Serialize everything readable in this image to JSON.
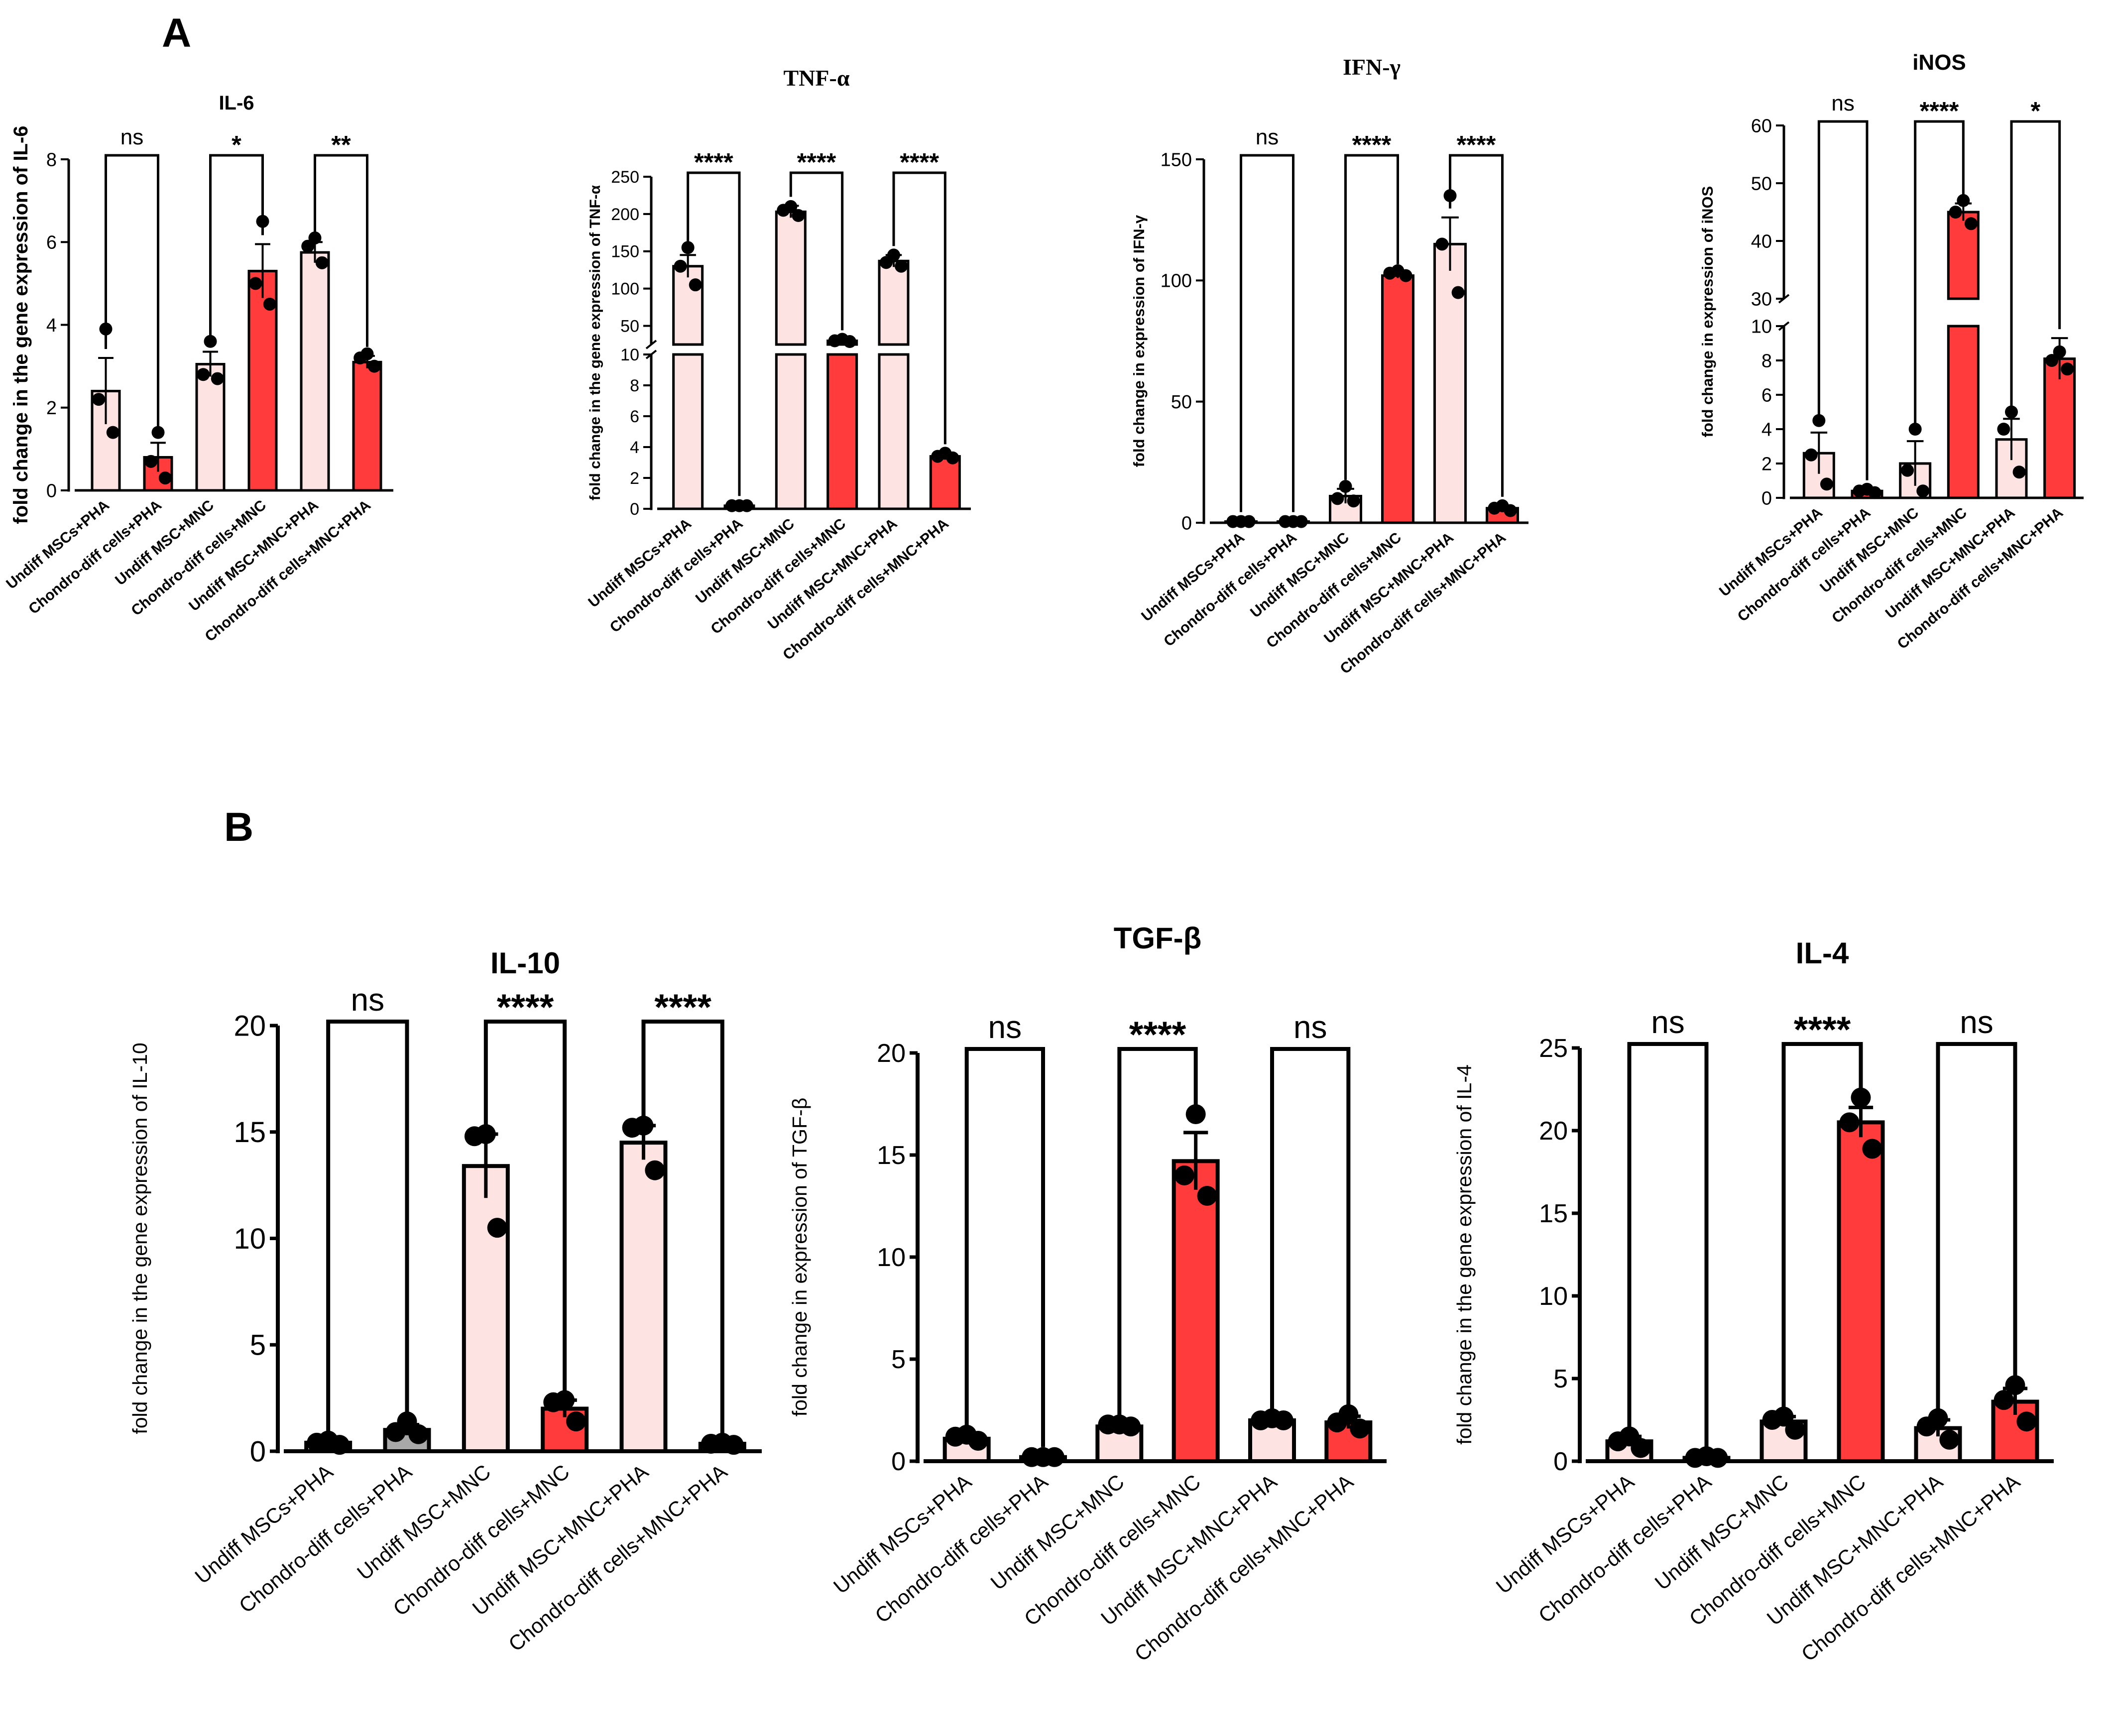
{
  "panel_labels": {
    "a": "A",
    "b": "B"
  },
  "colors": {
    "undiff": "#fde4e3",
    "chondro": "#ff3b3b",
    "gray": "#a8a8a8",
    "ink": "#000000"
  },
  "chart_data": [
    {
      "id": "il6",
      "type": "bar",
      "title": "IL-6",
      "ylabel": "fold change in the gene expression of IL-6",
      "categories": [
        "Undiff MSCs+PHA",
        "Chondro-diff cells+PHA",
        "Undiff MSC+MNC",
        "Chondro-diff cells+MNC",
        "Undiff MSC+MNC+PHA",
        "Chondro-diff cells+MNC+PHA"
      ],
      "values": [
        2.4,
        0.8,
        3.05,
        5.3,
        5.75,
        3.1
      ],
      "errors": [
        0.8,
        0.35,
        0.3,
        0.65,
        0.25,
        0.15
      ],
      "points": [
        [
          3.9,
          2.2,
          1.4
        ],
        [
          1.4,
          0.7,
          0.3
        ],
        [
          3.6,
          2.8,
          2.7
        ],
        [
          6.5,
          5.0,
          4.5
        ],
        [
          6.1,
          5.9,
          5.5
        ],
        [
          3.3,
          3.2,
          3.0
        ]
      ],
      "ylim": [
        0,
        8
      ],
      "yticks": [
        0,
        2,
        4,
        6,
        8
      ],
      "comparisons": [
        {
          "bars": [
            0,
            1
          ],
          "label": "ns"
        },
        {
          "bars": [
            2,
            3
          ],
          "label": "*"
        },
        {
          "bars": [
            4,
            5
          ],
          "label": "**"
        }
      ]
    },
    {
      "id": "tnfa",
      "type": "bar",
      "title": "TNF-α",
      "ylabel": "fold change in the gene expression of TNF-α",
      "categories": [
        "Undiff MSCs+PHA",
        "Chondro-diff cells+PHA",
        "Undiff MSC+MNC",
        "Chondro-diff cells+MNC",
        "Undiff MSC+MNC+PHA",
        "Chondro-diff cells+MNC+PHA"
      ],
      "values": [
        130,
        0.2,
        203,
        30,
        137,
        3.4
      ],
      "errors": [
        15,
        0.05,
        8,
        2,
        8,
        0.2
      ],
      "points": [
        [
          155,
          130,
          105
        ],
        [
          0.2,
          0.2,
          0.2
        ],
        [
          210,
          205,
          198
        ],
        [
          32,
          30,
          29
        ],
        [
          145,
          135,
          130
        ],
        [
          3.6,
          3.4,
          3.3
        ]
      ],
      "ylim_lower": [
        0,
        10
      ],
      "ylim_upper": [
        25,
        250
      ],
      "yticks_lower": [
        0,
        2,
        4,
        6,
        8,
        10
      ],
      "yticks_upper": [
        50,
        100,
        150,
        200,
        250
      ],
      "comparisons": [
        {
          "bars": [
            0,
            1
          ],
          "label": "****"
        },
        {
          "bars": [
            2,
            3
          ],
          "label": "****"
        },
        {
          "bars": [
            4,
            5
          ],
          "label": "****"
        }
      ]
    },
    {
      "id": "ifng",
      "type": "bar",
      "title": "IFN-γ",
      "ylabel": "fold change in expression of IFN-γ",
      "categories": [
        "Undiff MSCs+PHA",
        "Chondro-diff cells+PHA",
        "Undiff MSC+MNC",
        "Chondro-diff cells+MNC",
        "Undiff MSC+MNC+PHA",
        "Chondro-diff cells+MNC+PHA"
      ],
      "values": [
        0.5,
        0.5,
        11,
        102,
        115,
        6
      ],
      "errors": [
        0.2,
        0.2,
        3,
        1,
        11,
        1
      ],
      "points": [
        [
          0.5,
          0.5,
          0.5
        ],
        [
          0.5,
          0.5,
          0.5
        ],
        [
          15,
          10,
          9
        ],
        [
          104,
          103,
          102
        ],
        [
          135,
          115,
          95
        ],
        [
          7,
          6,
          5
        ]
      ],
      "ylim": [
        0,
        150
      ],
      "yticks": [
        0,
        50,
        100,
        150
      ],
      "comparisons": [
        {
          "bars": [
            0,
            1
          ],
          "label": "ns"
        },
        {
          "bars": [
            2,
            3
          ],
          "label": "****"
        },
        {
          "bars": [
            4,
            5
          ],
          "label": "****"
        }
      ]
    },
    {
      "id": "inos",
      "type": "bar",
      "title": "iNOS",
      "ylabel": "fold change in expression of iNOS",
      "categories": [
        "Undiff MSCs+PHA",
        "Chondro-diff cells+PHA",
        "Undiff MSC+MNC",
        "Chondro-diff cells+MNC",
        "Undiff MSC+MNC+PHA",
        "Chondro-diff cells+MNC+PHA"
      ],
      "values": [
        2.6,
        0.4,
        2.0,
        45,
        3.4,
        8.1
      ],
      "errors": [
        1.2,
        0.1,
        1.3,
        1.5,
        1.2,
        1.2
      ],
      "points": [
        [
          4.5,
          2.5,
          0.8
        ],
        [
          0.5,
          0.4,
          0.3
        ],
        [
          4.0,
          1.6,
          0.4
        ],
        [
          47,
          45,
          43
        ],
        [
          5.0,
          4.0,
          1.5
        ],
        [
          8.5,
          8.0,
          7.5
        ]
      ],
      "ylim_lower": [
        0,
        10
      ],
      "ylim_upper": [
        30,
        60
      ],
      "yticks_lower": [
        0,
        2,
        4,
        6,
        8,
        10
      ],
      "yticks_upper": [
        30,
        40,
        50,
        60
      ],
      "comparisons": [
        {
          "bars": [
            0,
            1
          ],
          "label": "ns"
        },
        {
          "bars": [
            2,
            3
          ],
          "label": "****"
        },
        {
          "bars": [
            4,
            5
          ],
          "label": "*"
        }
      ]
    },
    {
      "id": "il10",
      "type": "bar",
      "title": "IL-10",
      "ylabel": "fold change in the gene expression of IL-10",
      "categories": [
        "Undiff MSCs+PHA",
        "Chondro-diff cells+PHA",
        "Undiff MSC+MNC",
        "Chondro-diff cells+MNC",
        "Undiff MSC+MNC+PHA",
        "Chondro-diff cells+MNC+PHA"
      ],
      "values": [
        0.4,
        1.0,
        13.4,
        2.0,
        14.5,
        0.35
      ],
      "errors": [
        0.1,
        0.25,
        1.5,
        0.4,
        0.8,
        0.05
      ],
      "points": [
        [
          0.5,
          0.4,
          0.3
        ],
        [
          1.4,
          0.9,
          0.8
        ],
        [
          14.9,
          14.8,
          10.5
        ],
        [
          2.4,
          2.3,
          1.4
        ],
        [
          15.3,
          15.2,
          13.2
        ],
        [
          0.4,
          0.35,
          0.3
        ]
      ],
      "ylim": [
        0,
        20
      ],
      "yticks": [
        0,
        5,
        10,
        15,
        20
      ],
      "comparisons": [
        {
          "bars": [
            0,
            1
          ],
          "label": "ns"
        },
        {
          "bars": [
            2,
            3
          ],
          "label": "****"
        },
        {
          "bars": [
            4,
            5
          ],
          "label": "****"
        }
      ]
    },
    {
      "id": "tgfb",
      "type": "bar",
      "title": "TGF-β",
      "ylabel": "fold change in expression of TGF-β",
      "categories": [
        "Undiff MSCs+PHA",
        "Chondro-diff cells+PHA",
        "Undiff MSC+MNC",
        "Chondro-diff cells+MNC",
        "Undiff MSC+MNC+PHA",
        "Chondro-diff cells+MNC+PHA"
      ],
      "values": [
        1.1,
        0.2,
        1.7,
        14.7,
        2.0,
        1.9
      ],
      "errors": [
        0.15,
        0.05,
        0.1,
        1.4,
        0.05,
        0.3
      ],
      "points": [
        [
          1.3,
          1.2,
          1.0
        ],
        [
          0.2,
          0.2,
          0.2
        ],
        [
          1.8,
          1.8,
          1.7
        ],
        [
          17.0,
          14.0,
          13.0
        ],
        [
          2.1,
          2.0,
          2.0
        ],
        [
          2.3,
          1.9,
          1.6
        ]
      ],
      "ylim": [
        0,
        20
      ],
      "yticks": [
        0,
        5,
        10,
        15,
        20
      ],
      "comparisons": [
        {
          "bars": [
            0,
            1
          ],
          "label": "ns"
        },
        {
          "bars": [
            2,
            3
          ],
          "label": "****"
        },
        {
          "bars": [
            4,
            5
          ],
          "label": "ns"
        }
      ]
    },
    {
      "id": "il4",
      "type": "bar",
      "title": "IL-4",
      "ylabel": "fold change in the gene expression of IL-4",
      "categories": [
        "Undiff MSCs+PHA",
        "Chondro-diff cells+PHA",
        "Undiff MSC+MNC",
        "Chondro-diff cells+MNC",
        "Undiff MSC+MNC+PHA",
        "Chondro-diff cells+MNC+PHA"
      ],
      "values": [
        1.2,
        0.2,
        2.4,
        20.5,
        2.0,
        3.6
      ],
      "errors": [
        0.3,
        0.05,
        0.3,
        0.9,
        0.5,
        0.8
      ],
      "points": [
        [
          1.5,
          1.2,
          0.8
        ],
        [
          0.3,
          0.2,
          0.2
        ],
        [
          2.7,
          2.5,
          1.9
        ],
        [
          22.0,
          20.5,
          18.9
        ],
        [
          2.6,
          2.1,
          1.3
        ],
        [
          4.6,
          3.7,
          2.4
        ]
      ],
      "ylim": [
        0,
        25
      ],
      "yticks": [
        0,
        5,
        10,
        15,
        20,
        25
      ],
      "comparisons": [
        {
          "bars": [
            0,
            1
          ],
          "label": "ns"
        },
        {
          "bars": [
            2,
            3
          ],
          "label": "****"
        },
        {
          "bars": [
            4,
            5
          ],
          "label": "ns"
        }
      ]
    }
  ]
}
